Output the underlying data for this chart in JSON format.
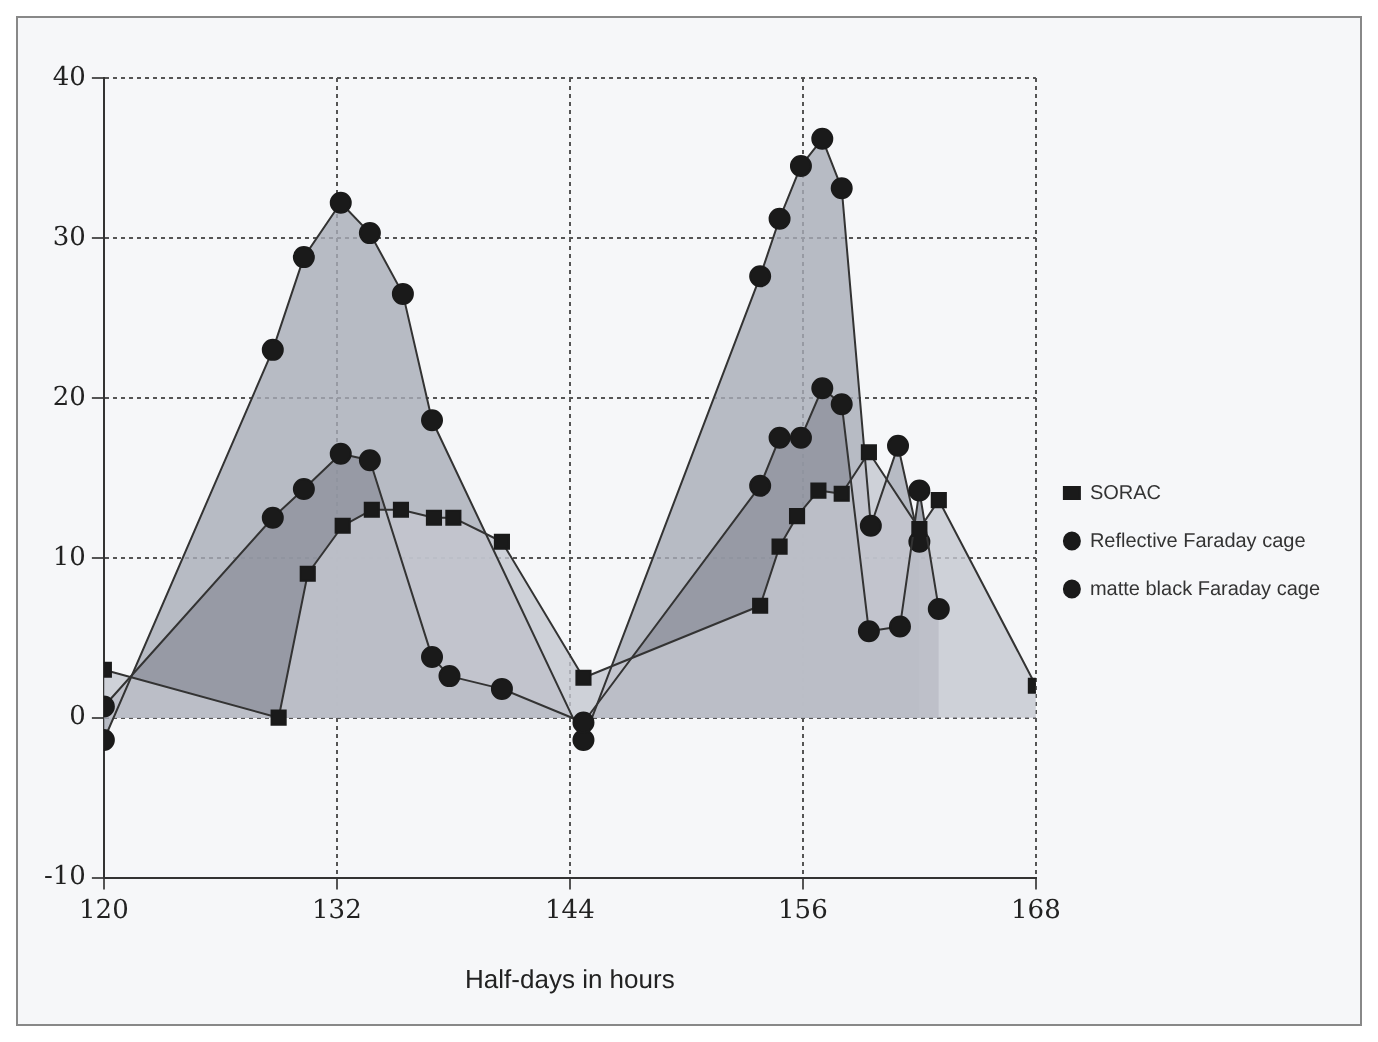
{
  "chart_data": {
    "type": "area",
    "xlabel": "Half-days in hours",
    "xlim": [
      120,
      168
    ],
    "xticks": [
      120,
      132,
      144,
      156,
      168
    ],
    "ylim": [
      -10,
      40
    ],
    "yticks": [
      -10,
      0,
      10,
      20,
      30,
      40
    ],
    "grid": true,
    "legend": "right",
    "marker": "circle",
    "line_style": "solid",
    "series": [
      {
        "name": "SORAC",
        "color": "#c4c7d0",
        "marker": "square",
        "x": [
          120,
          129,
          130.5,
          132.3,
          133.8,
          135.3,
          137,
          138,
          140.5,
          144.7,
          153.8,
          154.8,
          155.7,
          156.8,
          158,
          159.4,
          162,
          163,
          168
        ],
        "values": [
          3,
          0,
          9,
          12,
          13,
          13,
          12.5,
          12.5,
          11,
          2.5,
          7,
          10.7,
          12.6,
          14.2,
          14,
          16.6,
          11.8,
          13.6,
          2
        ]
      },
      {
        "name": "Reflective Faraday cage",
        "color": "#8e929e",
        "x": [
          120,
          128.7,
          130.3,
          132.2,
          133.7,
          136.9,
          137.8,
          140.5,
          144.7,
          153.8,
          154.8,
          155.9,
          157,
          158,
          159.4,
          161,
          162,
          163
        ],
        "values": [
          0.7,
          12.5,
          14.3,
          16.5,
          16.1,
          3.8,
          2.6,
          1.8,
          -0.3,
          14.5,
          17.5,
          17.5,
          20.6,
          19.6,
          5.4,
          5.7,
          14.2,
          6.8
        ]
      },
      {
        "name": "matte black Faraday cage",
        "color": "#a7abb6",
        "x": [
          120,
          128.7,
          130.3,
          132.2,
          133.7,
          135.4,
          136.9,
          144.7,
          153.8,
          154.8,
          155.9,
          157,
          158,
          159.5,
          160.9,
          162
        ],
        "values": [
          -1.4,
          23,
          28.8,
          32.2,
          30.3,
          26.5,
          18.6,
          -1.4,
          27.6,
          31.2,
          34.5,
          36.2,
          33.1,
          12,
          17,
          11
        ]
      }
    ]
  }
}
